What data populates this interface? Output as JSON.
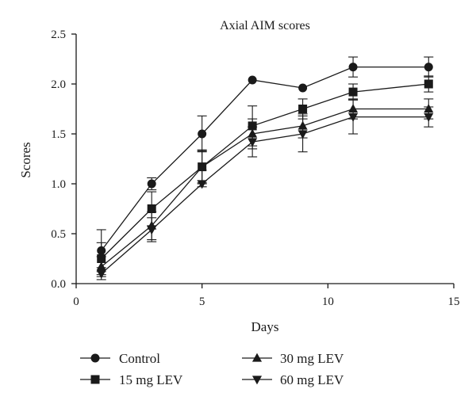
{
  "chart_data": {
    "type": "line",
    "title": "Axial AIM scores",
    "xlabel": "Days",
    "ylabel": "Scores",
    "xlim": [
      0,
      15
    ],
    "ylim": [
      0,
      2.5
    ],
    "xticks": [
      0,
      5,
      10,
      15
    ],
    "xtick_labels": [
      "0",
      "5",
      "10",
      "15"
    ],
    "yticks": [
      0,
      0.5,
      1.0,
      1.5,
      2.0,
      2.5
    ],
    "ytick_labels": [
      "0.0",
      "0.5",
      "1.0",
      "1.5",
      "2.0",
      "2.5"
    ],
    "grid": false,
    "legend_position": "bottom",
    "x": [
      1,
      3,
      5,
      7,
      9,
      11,
      14
    ],
    "series": [
      {
        "name": "Control",
        "marker": "circle",
        "values": [
          0.33,
          1.0,
          1.5,
          2.04,
          1.96,
          2.17,
          2.17
        ],
        "errors": [
          0.21,
          0.06,
          0.18,
          0,
          0,
          0.1,
          0.1
        ]
      },
      {
        "name": "15 mg LEV",
        "marker": "square",
        "values": [
          0.25,
          0.75,
          1.17,
          1.58,
          1.75,
          1.92,
          2.0
        ],
        "errors": [
          0.16,
          0.17,
          0.17,
          0.2,
          0.1,
          0.08,
          0.08
        ]
      },
      {
        "name": "30 mg LEV",
        "marker": "triangle-up",
        "values": [
          0.17,
          0.58,
          1.17,
          1.5,
          1.58,
          1.75,
          1.75
        ],
        "errors": [
          0.1,
          0.14,
          0.16,
          0.15,
          0.12,
          0.1,
          0.1
        ]
      },
      {
        "name": "60 mg LEV",
        "marker": "triangle-down",
        "values": [
          0.1,
          0.54,
          1.0,
          1.42,
          1.5,
          1.67,
          1.67
        ],
        "errors": [
          0.06,
          0.12,
          0.03,
          0.15,
          0.18,
          0.17,
          0.1
        ]
      }
    ]
  }
}
